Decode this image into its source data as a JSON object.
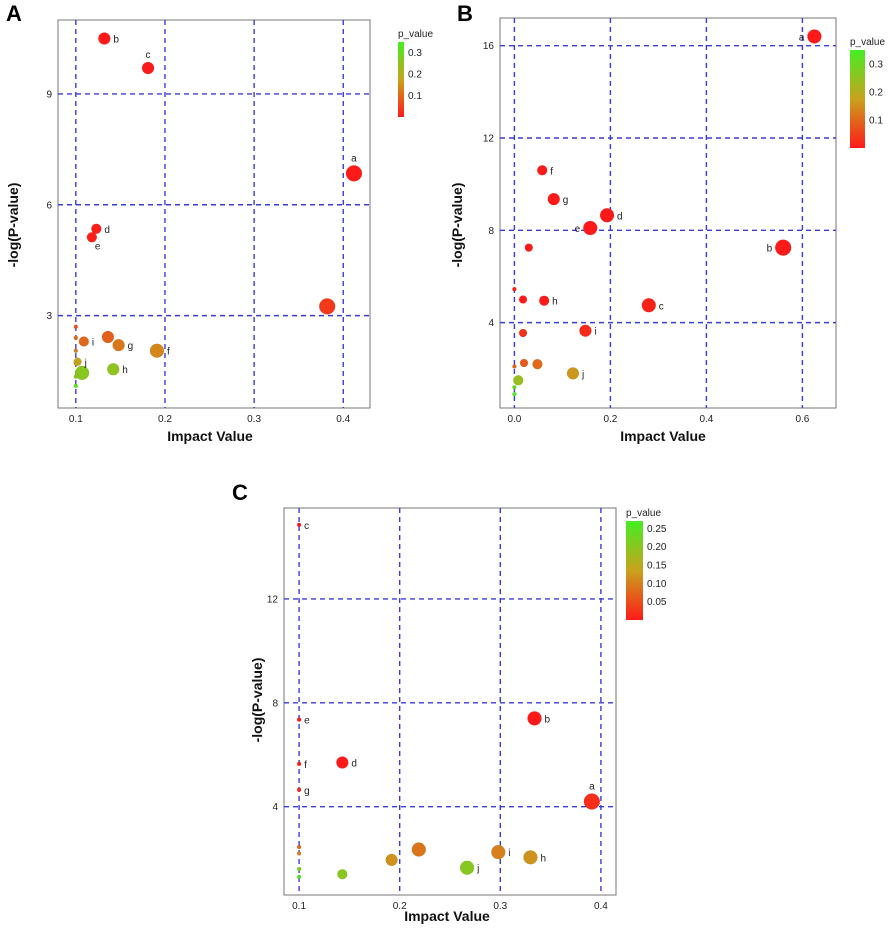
{
  "colors": {
    "grid": "#3b3bd6",
    "axis": "#777777",
    "low": "#ff1a1a",
    "mid": "#c8a21c",
    "high": "#44ee22"
  },
  "chart_data": [
    {
      "panel": "A",
      "type": "scatter",
      "xlabel": "Impact Value",
      "ylabel": "-log(P-value)",
      "xlim": [
        0.08,
        0.43
      ],
      "ylim": [
        0.5,
        11.0
      ],
      "xticks": [
        0.1,
        0.2,
        0.3,
        0.4
      ],
      "xtick_labels": [
        "0.1",
        "0.2",
        "0.3",
        "0.4"
      ],
      "yticks": [
        3,
        6,
        9
      ],
      "ytick_labels": [
        "3",
        "6",
        "9"
      ],
      "legend": {
        "title": "p_value",
        "vmax": 0.35,
        "ticks": [
          0.1,
          0.2,
          0.3
        ],
        "tick_labels": [
          "0.1",
          "0.2",
          "0.3"
        ]
      },
      "points": [
        {
          "x": 0.132,
          "y": 10.5,
          "p": 0.0,
          "size": 6,
          "label": "b"
        },
        {
          "x": 0.181,
          "y": 9.7,
          "p": 0.0,
          "size": 6,
          "label": "c"
        },
        {
          "x": 0.412,
          "y": 6.85,
          "p": 0.0,
          "size": 8,
          "label": "a"
        },
        {
          "x": 0.123,
          "y": 5.35,
          "p": 0.005,
          "size": 5,
          "label": "d"
        },
        {
          "x": 0.118,
          "y": 5.12,
          "p": 0.006,
          "size": 5,
          "label": "e"
        },
        {
          "x": 0.382,
          "y": 3.25,
          "p": 0.04,
          "size": 8,
          "label": ""
        },
        {
          "x": 0.109,
          "y": 2.3,
          "p": 0.1,
          "size": 5,
          "label": "i"
        },
        {
          "x": 0.136,
          "y": 2.42,
          "p": 0.09,
          "size": 6,
          "label": ""
        },
        {
          "x": 0.148,
          "y": 2.2,
          "p": 0.12,
          "size": 6,
          "label": "g"
        },
        {
          "x": 0.191,
          "y": 2.05,
          "p": 0.14,
          "size": 7,
          "label": "f"
        },
        {
          "x": 0.102,
          "y": 1.75,
          "p": 0.18,
          "size": 4,
          "label": "j"
        },
        {
          "x": 0.142,
          "y": 1.55,
          "p": 0.25,
          "size": 6,
          "label": "h"
        },
        {
          "x": 0.107,
          "y": 1.45,
          "p": 0.26,
          "size": 7,
          "label": ""
        },
        {
          "x": 0.1,
          "y": 2.7,
          "p": 0.07,
          "size": 2,
          "label": ""
        },
        {
          "x": 0.1,
          "y": 2.4,
          "p": 0.1,
          "size": 2,
          "label": ""
        },
        {
          "x": 0.1,
          "y": 2.05,
          "p": 0.13,
          "size": 2,
          "label": ""
        },
        {
          "x": 0.1,
          "y": 1.7,
          "p": 0.18,
          "size": 2,
          "label": ""
        },
        {
          "x": 0.1,
          "y": 1.35,
          "p": 0.25,
          "size": 2,
          "label": ""
        },
        {
          "x": 0.1,
          "y": 1.1,
          "p": 0.33,
          "size": 2,
          "label": ""
        }
      ]
    },
    {
      "panel": "B",
      "type": "scatter",
      "xlabel": "Impact Value",
      "ylabel": "-log(P-value)",
      "xlim": [
        -0.03,
        0.67
      ],
      "ylim": [
        0.3,
        17.2
      ],
      "xticks": [
        0.0,
        0.2,
        0.4,
        0.6
      ],
      "xtick_labels": [
        "0.0",
        "0.2",
        "0.4",
        "0.6"
      ],
      "yticks": [
        4,
        8,
        12,
        16
      ],
      "ytick_labels": [
        "4",
        "8",
        "12",
        "16"
      ],
      "legend": {
        "title": "p_value",
        "vmax": 0.35,
        "ticks": [
          0.1,
          0.2,
          0.3
        ],
        "tick_labels": [
          "0.1",
          "0.2",
          "0.3"
        ]
      },
      "points": [
        {
          "x": 0.625,
          "y": 16.4,
          "p": 0.0,
          "size": 7,
          "label": "a"
        },
        {
          "x": 0.058,
          "y": 10.6,
          "p": 0.0,
          "size": 5,
          "label": "f"
        },
        {
          "x": 0.082,
          "y": 9.35,
          "p": 0.0,
          "size": 6,
          "label": "g"
        },
        {
          "x": 0.193,
          "y": 8.65,
          "p": 0.0,
          "size": 7,
          "label": "d"
        },
        {
          "x": 0.158,
          "y": 8.1,
          "p": 0.0,
          "size": 7,
          "label": "e"
        },
        {
          "x": 0.03,
          "y": 7.25,
          "p": 0.0,
          "size": 4,
          "label": ""
        },
        {
          "x": 0.56,
          "y": 7.25,
          "p": 0.0,
          "size": 8,
          "label": "b"
        },
        {
          "x": 0.0,
          "y": 5.45,
          "p": 0.0,
          "size": 2,
          "label": ""
        },
        {
          "x": 0.018,
          "y": 5.0,
          "p": 0.0,
          "size": 4,
          "label": ""
        },
        {
          "x": 0.062,
          "y": 4.95,
          "p": 0.0,
          "size": 5,
          "label": "h"
        },
        {
          "x": 0.28,
          "y": 4.75,
          "p": 0.01,
          "size": 7,
          "label": "c"
        },
        {
          "x": 0.148,
          "y": 3.65,
          "p": 0.02,
          "size": 6,
          "label": "i"
        },
        {
          "x": 0.018,
          "y": 3.55,
          "p": 0.03,
          "size": 4,
          "label": ""
        },
        {
          "x": 0.02,
          "y": 2.25,
          "p": 0.08,
          "size": 4,
          "label": ""
        },
        {
          "x": 0.048,
          "y": 2.2,
          "p": 0.1,
          "size": 5,
          "label": ""
        },
        {
          "x": 0.0,
          "y": 2.1,
          "p": 0.1,
          "size": 2,
          "label": ""
        },
        {
          "x": 0.122,
          "y": 1.8,
          "p": 0.16,
          "size": 6,
          "label": "j"
        },
        {
          "x": 0.008,
          "y": 1.5,
          "p": 0.24,
          "size": 5,
          "label": ""
        },
        {
          "x": 0.0,
          "y": 1.2,
          "p": 0.3,
          "size": 2,
          "label": ""
        },
        {
          "x": 0.0,
          "y": 0.9,
          "p": 0.34,
          "size": 2,
          "label": ""
        }
      ]
    },
    {
      "panel": "C",
      "type": "scatter",
      "xlabel": "Impact Value",
      "ylabel": "-log(P-value)",
      "xlim": [
        0.085,
        0.415
      ],
      "ylim": [
        0.6,
        15.5
      ],
      "xticks": [
        0.1,
        0.2,
        0.3,
        0.4
      ],
      "xtick_labels": [
        "0.1",
        "0.2",
        "0.3",
        "0.4"
      ],
      "yticks": [
        4,
        8,
        12
      ],
      "ytick_labels": [
        "4",
        "8",
        "12"
      ],
      "legend": {
        "title": "p_value",
        "vmax": 0.27,
        "ticks": [
          0.05,
          0.1,
          0.15,
          0.2,
          0.25
        ],
        "tick_labels": [
          "0.05",
          "0.10",
          "0.15",
          "0.20",
          "0.25"
        ]
      },
      "points": [
        {
          "x": 0.1,
          "y": 14.85,
          "p": 0.0,
          "size": 2,
          "label": "c"
        },
        {
          "x": 0.334,
          "y": 7.4,
          "p": 0.0,
          "size": 7,
          "label": "b"
        },
        {
          "x": 0.1,
          "y": 7.35,
          "p": 0.0,
          "size": 2,
          "label": "e"
        },
        {
          "x": 0.143,
          "y": 5.7,
          "p": 0.0,
          "size": 6,
          "label": "d"
        },
        {
          "x": 0.1,
          "y": 5.65,
          "p": 0.0,
          "size": 2,
          "label": "f"
        },
        {
          "x": 0.1,
          "y": 4.65,
          "p": 0.01,
          "size": 2,
          "label": "g"
        },
        {
          "x": 0.391,
          "y": 4.2,
          "p": 0.02,
          "size": 8,
          "label": "a"
        },
        {
          "x": 0.1,
          "y": 2.45,
          "p": 0.08,
          "size": 2,
          "label": ""
        },
        {
          "x": 0.1,
          "y": 2.2,
          "p": 0.1,
          "size": 2,
          "label": ""
        },
        {
          "x": 0.219,
          "y": 2.35,
          "p": 0.09,
          "size": 7,
          "label": ""
        },
        {
          "x": 0.298,
          "y": 2.25,
          "p": 0.1,
          "size": 7,
          "label": "i"
        },
        {
          "x": 0.33,
          "y": 2.05,
          "p": 0.12,
          "size": 7,
          "label": "h"
        },
        {
          "x": 0.192,
          "y": 1.95,
          "p": 0.12,
          "size": 6,
          "label": ""
        },
        {
          "x": 0.267,
          "y": 1.65,
          "p": 0.2,
          "size": 7,
          "label": "j"
        },
        {
          "x": 0.1,
          "y": 1.6,
          "p": 0.22,
          "size": 2,
          "label": ""
        },
        {
          "x": 0.143,
          "y": 1.4,
          "p": 0.2,
          "size": 5,
          "label": ""
        },
        {
          "x": 0.1,
          "y": 1.3,
          "p": 0.26,
          "size": 2,
          "label": ""
        }
      ]
    }
  ]
}
